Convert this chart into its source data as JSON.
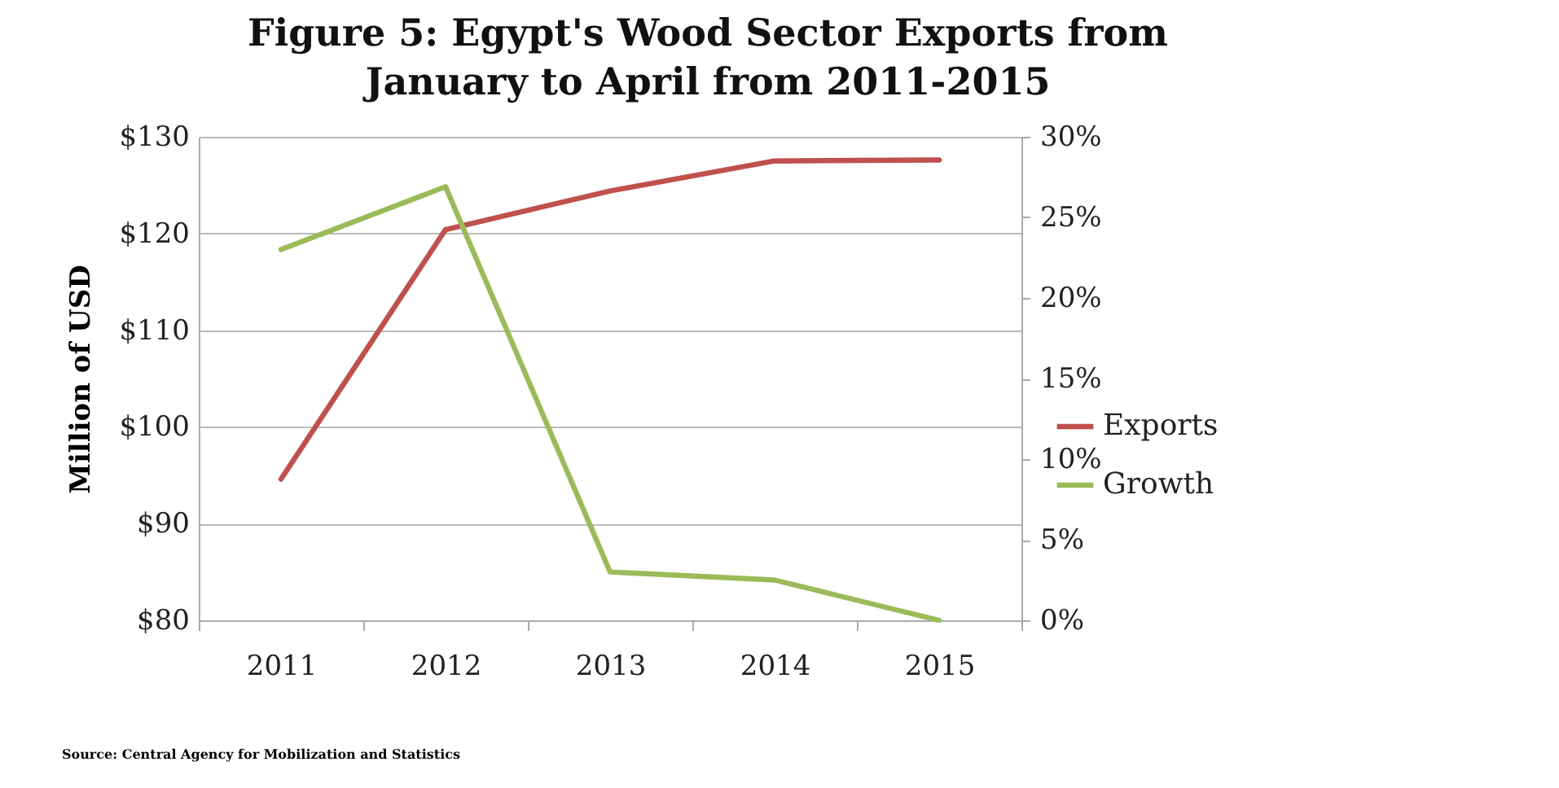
{
  "chart_data": {
    "type": "line",
    "title": "Figure 5: Egypt's Wood Sector Exports from\nJanuary to April from 2011-2015",
    "ylabel": "Million of USD",
    "categories": [
      "2011",
      "2012",
      "2013",
      "2014",
      "2015"
    ],
    "series": [
      {
        "name": "Exports",
        "color": "#c0504d",
        "values": [
          94.6,
          120.4,
          124.4,
          127.5,
          127.6
        ]
      },
      {
        "name": "Growth",
        "color": "#9bbb59",
        "axis": "y2",
        "values": [
          23.0,
          26.9,
          3.0,
          2.5,
          0
        ]
      }
    ],
    "ylim": [
      80,
      130
    ],
    "yticks": [
      {
        "value": 80,
        "label": "$80"
      },
      {
        "value": 90,
        "label": "$90"
      },
      {
        "value": 100,
        "label": "$100"
      },
      {
        "value": 110,
        "label": "$110"
      },
      {
        "value": 120,
        "label": "$120"
      },
      {
        "value": 130,
        "label": "$130"
      }
    ],
    "y2lim": [
      0,
      30
    ],
    "y2ticks": [
      {
        "value": 0,
        "label": "0%"
      },
      {
        "value": 5,
        "label": "5%"
      },
      {
        "value": 10,
        "label": "10%"
      },
      {
        "value": 15,
        "label": "15%"
      },
      {
        "value": 20,
        "label": "20%"
      },
      {
        "value": 25,
        "label": "25%"
      },
      {
        "value": 30,
        "label": "30%"
      }
    ],
    "grid": "y",
    "legend": "right",
    "marker": "none",
    "line_style": "solid",
    "annotations": [
      "Source: Central Agency for Mobilization and Statistics"
    ]
  }
}
